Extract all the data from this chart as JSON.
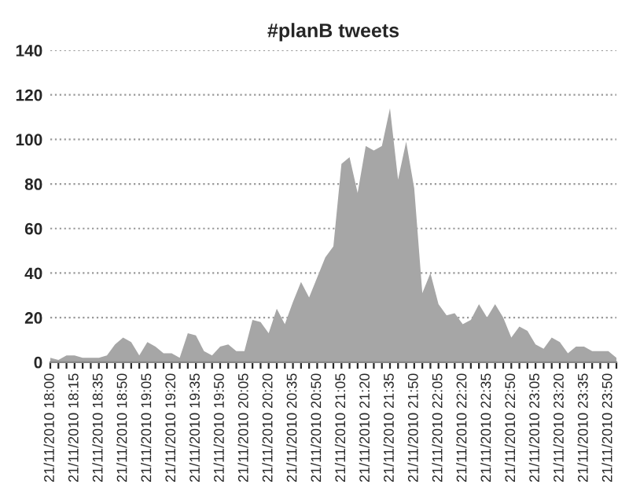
{
  "chart_data": {
    "type": "area",
    "title": "#planB tweets",
    "categories": [
      "21/11/2010 18:00",
      null,
      null,
      "21/11/2010 18:15",
      null,
      null,
      "21/11/2010 18:35",
      null,
      null,
      "21/11/2010 18:50",
      null,
      null,
      "21/11/2010 19:05",
      null,
      null,
      "21/11/2010 19:20",
      null,
      null,
      "21/11/2010 19:35",
      null,
      null,
      "21/11/2010 19:50",
      null,
      null,
      "21/11/2010 20:05",
      null,
      null,
      "21/11/2010 20:20",
      null,
      null,
      "21/11/2010 20:35",
      null,
      null,
      "21/11/2010 20:50",
      null,
      null,
      "21/11/2010 21:05",
      null,
      null,
      "21/11/2010 21:20",
      null,
      null,
      "21/11/2010 21:35",
      null,
      null,
      "21/11/2010 21:50",
      null,
      null,
      "21/11/2010 22:05",
      null,
      null,
      "21/11/2010 22:20",
      null,
      null,
      "21/11/2010 22:35",
      null,
      null,
      "21/11/2010 22:50",
      null,
      null,
      "21/11/2010 23:05",
      null,
      null,
      "21/11/2010 23:20",
      null,
      null,
      "21/11/2010 23:35",
      null,
      null,
      "21/11/2010 23:50",
      null
    ],
    "series": [
      {
        "color": "#a6a6a6",
        "values": [
          2,
          1,
          3,
          3,
          2,
          2,
          2,
          3,
          8,
          11,
          9,
          3,
          9,
          7,
          4,
          4,
          2,
          13,
          12,
          5,
          3,
          7,
          8,
          5,
          5,
          19,
          18,
          13,
          24,
          17,
          27,
          36,
          29,
          38,
          47,
          52,
          89,
          92,
          76,
          97,
          95,
          97,
          114,
          82,
          99,
          78,
          31,
          40,
          26,
          21,
          22,
          17,
          19,
          26,
          20,
          26,
          20,
          11,
          16,
          14,
          8,
          6,
          11,
          9,
          4,
          7,
          7,
          5,
          5,
          5,
          2
        ]
      }
    ],
    "ylim": [
      0,
      140
    ],
    "yticks": [
      0,
      20,
      40,
      60,
      80,
      100,
      120,
      140
    ],
    "grid": "y"
  }
}
